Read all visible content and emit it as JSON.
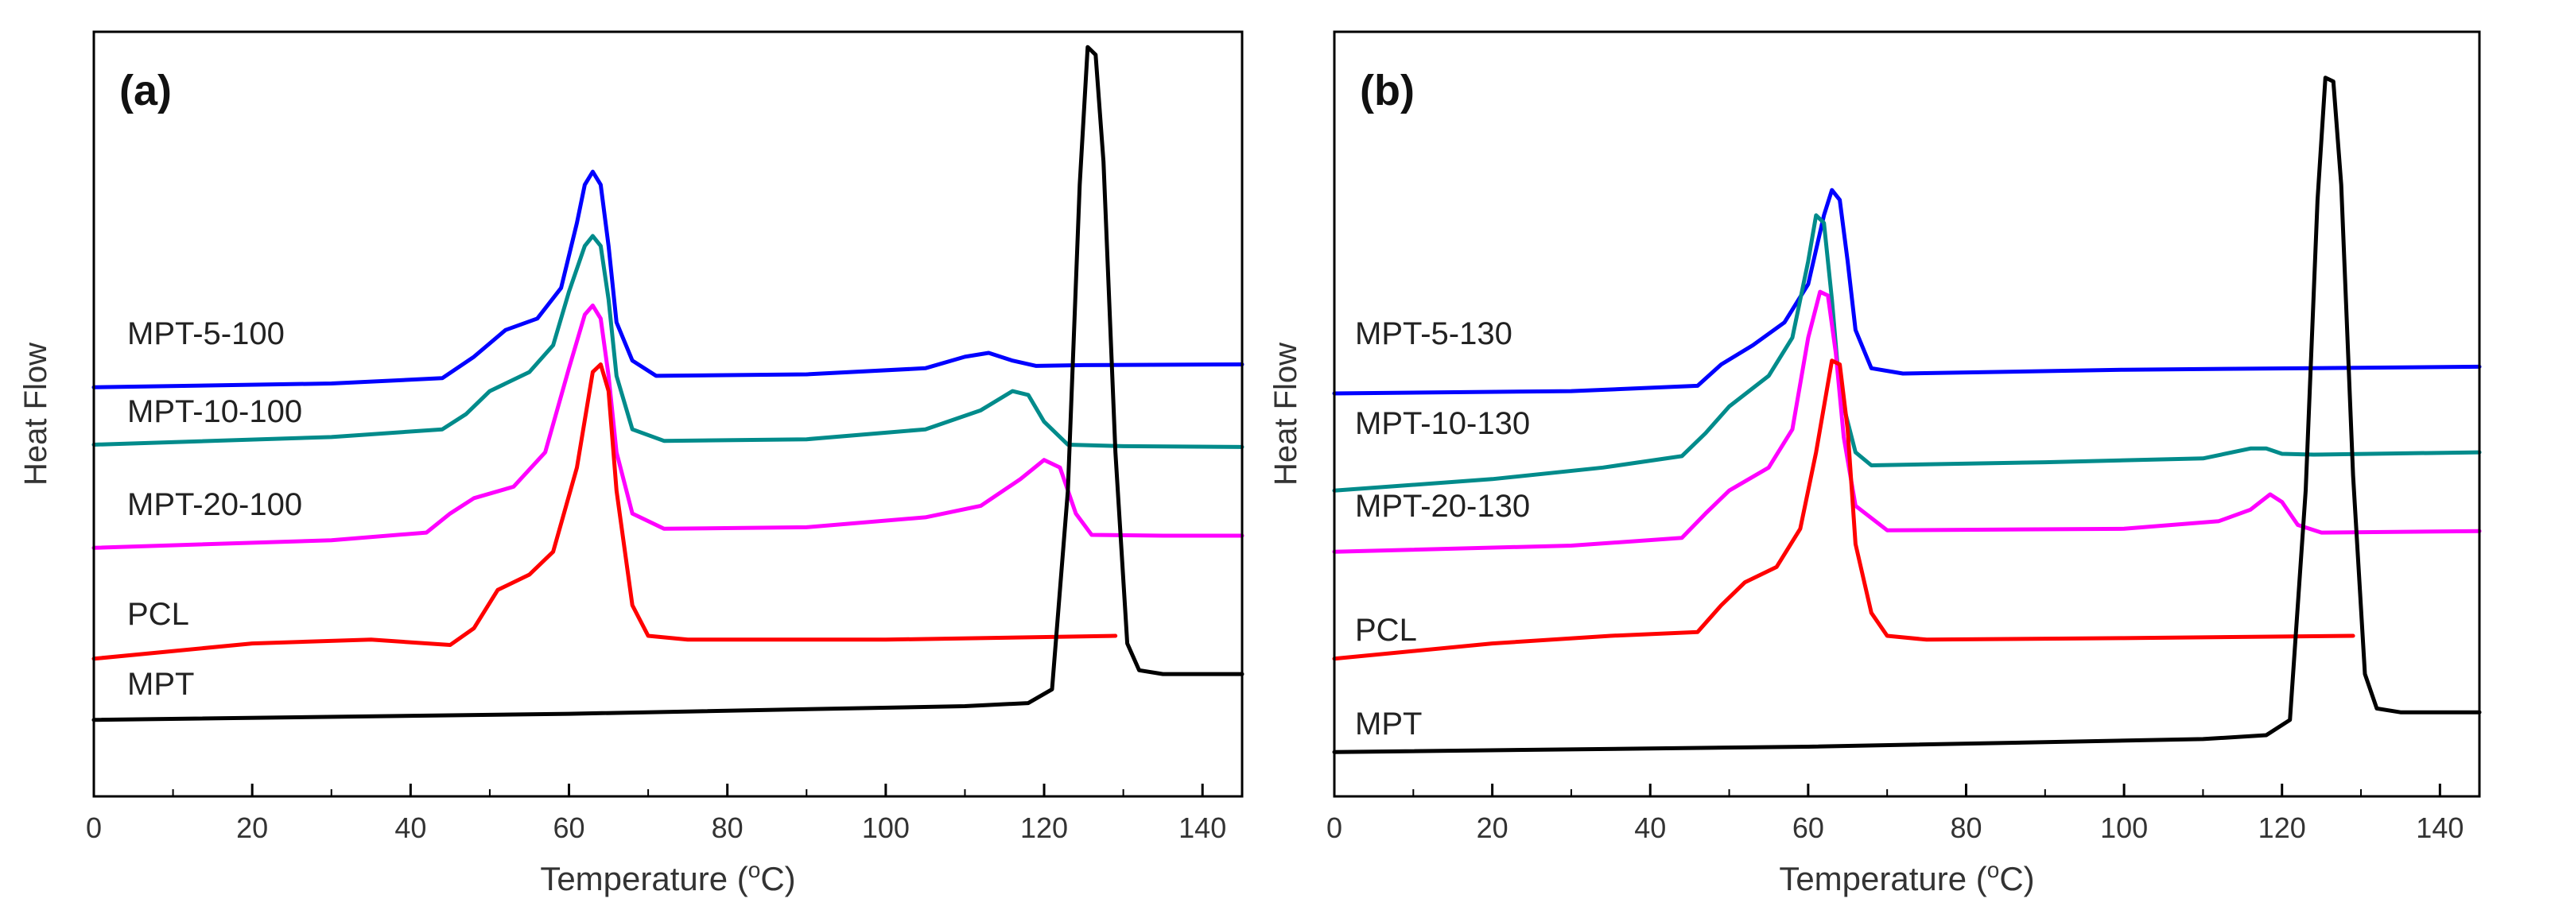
{
  "chart_data": [
    {
      "type": "line",
      "panel_label": "(a)",
      "xlabel_prefix": "Temperature (",
      "xlabel_sup": "o",
      "xlabel_suffix": "C)",
      "ylabel": "Heat Flow",
      "xlim": [
        0,
        145
      ],
      "xticks": [
        0,
        20,
        40,
        60,
        80,
        100,
        120,
        140
      ],
      "ylim": [
        0,
        1
      ],
      "series": [
        {
          "name": "MPT-5-100",
          "color": "#0000ff",
          "points": [
            [
              0,
              0.535
            ],
            [
              30,
              0.54
            ],
            [
              44,
              0.547
            ],
            [
              48,
              0.575
            ],
            [
              52,
              0.61
            ],
            [
              56,
              0.625
            ],
            [
              59,
              0.665
            ],
            [
              61,
              0.75
            ],
            [
              62,
              0.8
            ],
            [
              63,
              0.817
            ],
            [
              64,
              0.8
            ],
            [
              65,
              0.72
            ],
            [
              66,
              0.62
            ],
            [
              68,
              0.57
            ],
            [
              71,
              0.55
            ],
            [
              90,
              0.552
            ],
            [
              105,
              0.56
            ],
            [
              110,
              0.575
            ],
            [
              113,
              0.58
            ],
            [
              116,
              0.57
            ],
            [
              119,
              0.563
            ],
            [
              125,
              0.564
            ],
            [
              145,
              0.565
            ]
          ]
        },
        {
          "name": "MPT-10-100",
          "color": "#008b8b",
          "points": [
            [
              0,
              0.46
            ],
            [
              30,
              0.47
            ],
            [
              44,
              0.48
            ],
            [
              47,
              0.5
            ],
            [
              50,
              0.53
            ],
            [
              55,
              0.555
            ],
            [
              58,
              0.59
            ],
            [
              60,
              0.66
            ],
            [
              62,
              0.72
            ],
            [
              63,
              0.733
            ],
            [
              64,
              0.72
            ],
            [
              65,
              0.65
            ],
            [
              66,
              0.55
            ],
            [
              68,
              0.48
            ],
            [
              72,
              0.465
            ],
            [
              90,
              0.467
            ],
            [
              105,
              0.48
            ],
            [
              112,
              0.505
            ],
            [
              116,
              0.53
            ],
            [
              118,
              0.525
            ],
            [
              120,
              0.49
            ],
            [
              123,
              0.46
            ],
            [
              130,
              0.458
            ],
            [
              145,
              0.457
            ]
          ]
        },
        {
          "name": "MPT-20-100",
          "color": "#ff00ff",
          "points": [
            [
              0,
              0.325
            ],
            [
              30,
              0.335
            ],
            [
              42,
              0.345
            ],
            [
              45,
              0.37
            ],
            [
              48,
              0.39
            ],
            [
              53,
              0.405
            ],
            [
              57,
              0.45
            ],
            [
              60,
              0.56
            ],
            [
              62,
              0.63
            ],
            [
              63,
              0.642
            ],
            [
              64,
              0.625
            ],
            [
              65,
              0.55
            ],
            [
              66,
              0.45
            ],
            [
              68,
              0.37
            ],
            [
              72,
              0.35
            ],
            [
              90,
              0.352
            ],
            [
              105,
              0.365
            ],
            [
              112,
              0.38
            ],
            [
              117,
              0.415
            ],
            [
              120,
              0.44
            ],
            [
              122,
              0.43
            ],
            [
              124,
              0.37
            ],
            [
              126,
              0.342
            ],
            [
              135,
              0.341
            ],
            [
              145,
              0.341
            ]
          ]
        },
        {
          "name": "PCL",
          "color": "#ff0000",
          "points": [
            [
              0,
              0.18
            ],
            [
              20,
              0.2
            ],
            [
              35,
              0.205
            ],
            [
              45,
              0.198
            ],
            [
              48,
              0.22
            ],
            [
              51,
              0.27
            ],
            [
              55,
              0.29
            ],
            [
              58,
              0.32
            ],
            [
              61,
              0.43
            ],
            [
              63,
              0.555
            ],
            [
              64,
              0.565
            ],
            [
              65,
              0.53
            ],
            [
              66,
              0.4
            ],
            [
              68,
              0.25
            ],
            [
              70,
              0.21
            ],
            [
              75,
              0.205
            ],
            [
              100,
              0.205
            ],
            [
              129,
              0.21
            ]
          ]
        },
        {
          "name": "MPT",
          "color": "#000000",
          "points": [
            [
              0,
              0.1
            ],
            [
              60,
              0.108
            ],
            [
              110,
              0.118
            ],
            [
              118,
              0.122
            ],
            [
              121,
              0.14
            ],
            [
              123,
              0.4
            ],
            [
              124.5,
              0.8
            ],
            [
              125.5,
              0.98
            ],
            [
              126.5,
              0.97
            ],
            [
              127.5,
              0.83
            ],
            [
              129,
              0.45
            ],
            [
              130.5,
              0.2
            ],
            [
              132,
              0.165
            ],
            [
              135,
              0.16
            ],
            [
              145,
              0.16
            ]
          ]
        }
      ]
    },
    {
      "type": "line",
      "panel_label": "(b)",
      "xlabel_prefix": "Temperature (",
      "xlabel_sup": "o",
      "xlabel_suffix": "C)",
      "ylabel": "Heat Flow",
      "xlim": [
        0,
        145
      ],
      "xticks": [
        0,
        20,
        40,
        60,
        80,
        100,
        120,
        140
      ],
      "ylim": [
        0,
        1
      ],
      "series": [
        {
          "name": "MPT-5-130",
          "color": "#0000ff",
          "points": [
            [
              0,
              0.527
            ],
            [
              30,
              0.53
            ],
            [
              46,
              0.537
            ],
            [
              49,
              0.565
            ],
            [
              53,
              0.59
            ],
            [
              57,
              0.62
            ],
            [
              60,
              0.67
            ],
            [
              62,
              0.76
            ],
            [
              63,
              0.793
            ],
            [
              64,
              0.78
            ],
            [
              65,
              0.7
            ],
            [
              66,
              0.61
            ],
            [
              68,
              0.56
            ],
            [
              72,
              0.553
            ],
            [
              100,
              0.558
            ],
            [
              145,
              0.562
            ]
          ]
        },
        {
          "name": "MPT-10-130",
          "color": "#008b8b",
          "points": [
            [
              0,
              0.4
            ],
            [
              20,
              0.415
            ],
            [
              34,
              0.43
            ],
            [
              44,
              0.445
            ],
            [
              47,
              0.475
            ],
            [
              50,
              0.51
            ],
            [
              55,
              0.55
            ],
            [
              58,
              0.6
            ],
            [
              60,
              0.7
            ],
            [
              61,
              0.76
            ],
            [
              62,
              0.75
            ],
            [
              63,
              0.65
            ],
            [
              64,
              0.53
            ],
            [
              66,
              0.45
            ],
            [
              68,
              0.433
            ],
            [
              90,
              0.437
            ],
            [
              110,
              0.442
            ],
            [
              116,
              0.455
            ],
            [
              118,
              0.455
            ],
            [
              120,
              0.448
            ],
            [
              124,
              0.447
            ],
            [
              145,
              0.45
            ]
          ]
        },
        {
          "name": "MPT-20-130",
          "color": "#ff00ff",
          "points": [
            [
              0,
              0.32
            ],
            [
              30,
              0.328
            ],
            [
              44,
              0.338
            ],
            [
              47,
              0.37
            ],
            [
              50,
              0.4
            ],
            [
              55,
              0.43
            ],
            [
              58,
              0.48
            ],
            [
              60,
              0.6
            ],
            [
              61.5,
              0.66
            ],
            [
              62.5,
              0.655
            ],
            [
              63.5,
              0.58
            ],
            [
              64.5,
              0.47
            ],
            [
              66,
              0.38
            ],
            [
              70,
              0.348
            ],
            [
              100,
              0.35
            ],
            [
              112,
              0.36
            ],
            [
              116,
              0.375
            ],
            [
              118.5,
              0.395
            ],
            [
              120,
              0.385
            ],
            [
              122,
              0.355
            ],
            [
              125,
              0.345
            ],
            [
              145,
              0.347
            ]
          ]
        },
        {
          "name": "PCL",
          "color": "#ff0000",
          "points": [
            [
              0,
              0.18
            ],
            [
              20,
              0.2
            ],
            [
              35,
              0.21
            ],
            [
              46,
              0.215
            ],
            [
              49,
              0.25
            ],
            [
              52,
              0.28
            ],
            [
              56,
              0.3
            ],
            [
              59,
              0.35
            ],
            [
              61,
              0.45
            ],
            [
              63,
              0.57
            ],
            [
              64,
              0.565
            ],
            [
              65,
              0.48
            ],
            [
              66,
              0.33
            ],
            [
              68,
              0.24
            ],
            [
              70,
              0.21
            ],
            [
              75,
              0.205
            ],
            [
              100,
              0.207
            ],
            [
              129,
              0.21
            ]
          ]
        },
        {
          "name": "MPT",
          "color": "#000000",
          "points": [
            [
              0,
              0.058
            ],
            [
              60,
              0.065
            ],
            [
              110,
              0.075
            ],
            [
              118,
              0.08
            ],
            [
              121,
              0.1
            ],
            [
              123,
              0.4
            ],
            [
              124.5,
              0.78
            ],
            [
              125.5,
              0.94
            ],
            [
              126.5,
              0.935
            ],
            [
              127.5,
              0.8
            ],
            [
              129,
              0.42
            ],
            [
              130.5,
              0.16
            ],
            [
              132,
              0.115
            ],
            [
              135,
              0.11
            ],
            [
              145,
              0.11
            ]
          ]
        }
      ]
    }
  ]
}
